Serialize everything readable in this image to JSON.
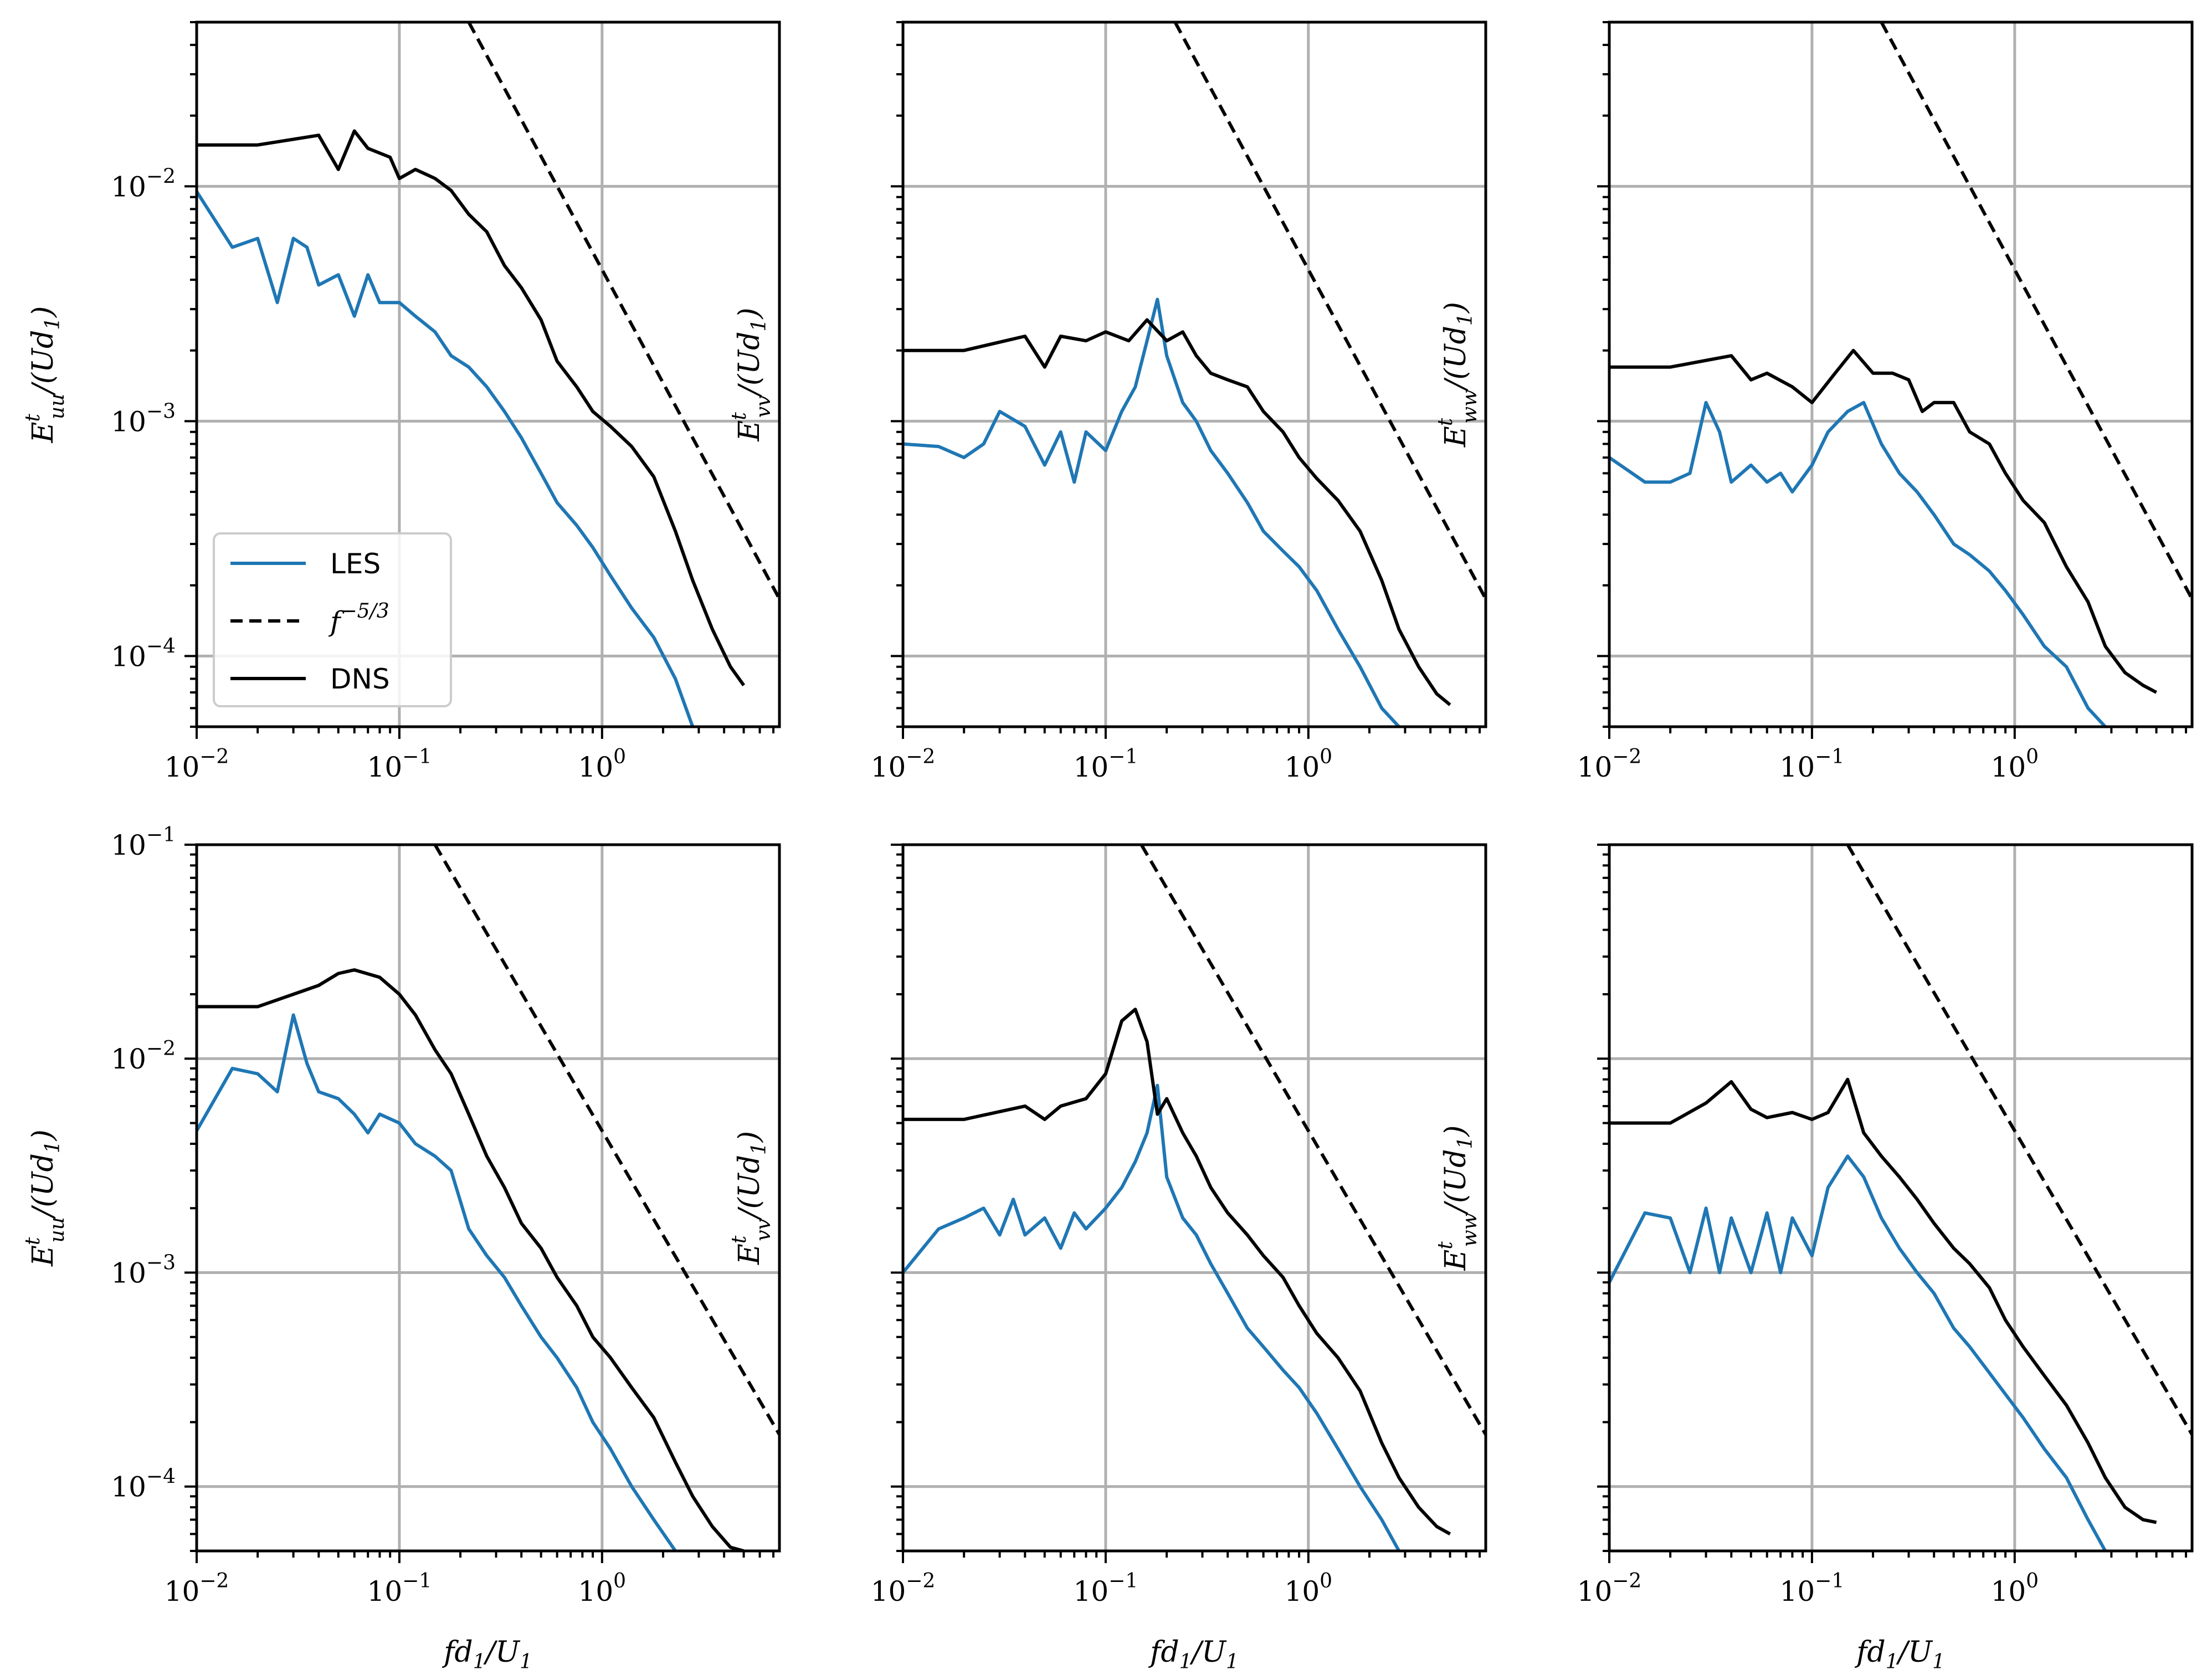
{
  "colors": {
    "les": "#1f77b4",
    "dns": "#000000",
    "ref": "#000000",
    "grid": "#b0b0b0"
  },
  "legend": {
    "les": "LES",
    "ref": "f^{-5/3}",
    "ref_base": "f",
    "ref_exp": "−5/3",
    "dns": "DNS"
  },
  "labels": {
    "xlabel": "fd1/U1",
    "xlabel_main": "fd",
    "xlabel_sub1": "1",
    "xlabel_mid": "/U",
    "xlabel_sub2": "1"
  },
  "chart_data": [
    {
      "type": "line",
      "row": 1,
      "col": 1,
      "xscale": "log",
      "yscale": "log",
      "xlim": [
        0.01,
        7.5
      ],
      "ylim": [
        5e-05,
        0.05
      ],
      "ylabel": "E^t_uu/(Ud1)",
      "ylabel_base": "E",
      "ylabel_sub": "uu",
      "ylabel_sup": "t",
      "ylabel_rest": "/(Ud",
      "ylabel_sub2": "1",
      "ylabel_end": ")",
      "xticks": [
        "10^-2",
        "10^-1",
        "10^0"
      ],
      "yticks": [
        "10^-2",
        "10^-3",
        "10^-4"
      ],
      "legend": true,
      "series": [
        {
          "name": "DNS",
          "x": [
            0.01,
            0.02,
            0.04,
            0.05,
            0.06,
            0.07,
            0.09,
            0.1,
            0.12,
            0.15,
            0.18,
            0.22,
            0.27,
            0.33,
            0.4,
            0.5,
            0.6,
            0.75,
            0.9,
            1.1,
            1.4,
            1.8,
            2.3,
            2.8,
            3.5,
            4.3,
            5.0
          ],
          "y": [
            0.015,
            0.015,
            0.0165,
            0.0118,
            0.0172,
            0.0145,
            0.0133,
            0.0108,
            0.0118,
            0.0108,
            0.0096,
            0.0076,
            0.0064,
            0.0046,
            0.0037,
            0.0027,
            0.0018,
            0.0014,
            0.0011,
            0.00095,
            0.00078,
            0.00058,
            0.00034,
            0.00021,
            0.00013,
            9e-05,
            7.5e-05
          ]
        },
        {
          "name": "LES",
          "x": [
            0.01,
            0.015,
            0.02,
            0.025,
            0.03,
            0.035,
            0.04,
            0.05,
            0.06,
            0.07,
            0.08,
            0.1,
            0.12,
            0.15,
            0.18,
            0.22,
            0.27,
            0.33,
            0.4,
            0.5,
            0.6,
            0.75,
            0.9,
            1.1,
            1.4,
            1.8,
            2.3,
            2.8
          ],
          "y": [
            0.0095,
            0.0055,
            0.006,
            0.0032,
            0.006,
            0.0055,
            0.0038,
            0.0042,
            0.0028,
            0.0042,
            0.0032,
            0.0032,
            0.0028,
            0.0024,
            0.0019,
            0.0017,
            0.0014,
            0.0011,
            0.00085,
            0.0006,
            0.00045,
            0.00036,
            0.00029,
            0.00022,
            0.00016,
            0.00012,
            8e-05,
            5e-05
          ]
        },
        {
          "name": "f^{-5/3}",
          "x": [
            0.22,
            7.5
          ],
          "y": [
            0.05,
            0.000175
          ]
        }
      ]
    },
    {
      "type": "line",
      "row": 1,
      "col": 2,
      "xscale": "log",
      "yscale": "log",
      "xlim": [
        0.01,
        7.5
      ],
      "ylim": [
        5e-05,
        0.05
      ],
      "ylabel": "E^t_vv/(Ud1)",
      "ylabel_base": "E",
      "ylabel_sub": "vv",
      "ylabel_sup": "t",
      "ylabel_rest": "/(Ud",
      "ylabel_sub2": "1",
      "ylabel_end": ")",
      "xticks": [
        "10^-2",
        "10^-1",
        "10^0"
      ],
      "yticks": [],
      "legend": false,
      "series": [
        {
          "name": "DNS",
          "x": [
            0.01,
            0.02,
            0.04,
            0.05,
            0.06,
            0.08,
            0.1,
            0.13,
            0.16,
            0.2,
            0.24,
            0.28,
            0.33,
            0.4,
            0.5,
            0.6,
            0.75,
            0.9,
            1.1,
            1.4,
            1.8,
            2.3,
            2.8,
            3.5,
            4.3,
            5.0
          ],
          "y": [
            0.002,
            0.002,
            0.0023,
            0.0017,
            0.0023,
            0.0022,
            0.0024,
            0.0022,
            0.0027,
            0.0022,
            0.0024,
            0.0019,
            0.0016,
            0.0015,
            0.0014,
            0.0011,
            0.0009,
            0.0007,
            0.00057,
            0.00046,
            0.00034,
            0.00021,
            0.00013,
            9e-05,
            6.9e-05,
            6.2e-05
          ]
        },
        {
          "name": "LES",
          "x": [
            0.01,
            0.015,
            0.02,
            0.025,
            0.03,
            0.04,
            0.05,
            0.06,
            0.07,
            0.08,
            0.1,
            0.12,
            0.14,
            0.16,
            0.18,
            0.2,
            0.24,
            0.28,
            0.33,
            0.4,
            0.5,
            0.6,
            0.75,
            0.9,
            1.1,
            1.4,
            1.8,
            2.3,
            2.8
          ],
          "y": [
            0.0008,
            0.00078,
            0.0007,
            0.0008,
            0.0011,
            0.00095,
            0.00065,
            0.0009,
            0.00055,
            0.0009,
            0.00075,
            0.0011,
            0.0014,
            0.0022,
            0.0033,
            0.0019,
            0.0012,
            0.001,
            0.00075,
            0.0006,
            0.00045,
            0.00034,
            0.00028,
            0.00024,
            0.00019,
            0.00013,
            9e-05,
            6e-05,
            5e-05
          ]
        },
        {
          "name": "f^{-5/3}",
          "x": [
            0.22,
            7.5
          ],
          "y": [
            0.05,
            0.000175
          ]
        }
      ]
    },
    {
      "type": "line",
      "row": 1,
      "col": 3,
      "xscale": "log",
      "yscale": "log",
      "xlim": [
        0.01,
        7.5
      ],
      "ylim": [
        5e-05,
        0.05
      ],
      "ylabel": "E^t_ww/(Ud1)",
      "ylabel_base": "E",
      "ylabel_sub": "ww",
      "ylabel_sup": "t",
      "ylabel_rest": "/(Ud",
      "ylabel_sub2": "1",
      "ylabel_end": ")",
      "xticks": [
        "10^-2",
        "10^-1",
        "10^0"
      ],
      "yticks": [],
      "legend": false,
      "series": [
        {
          "name": "DNS",
          "x": [
            0.01,
            0.02,
            0.04,
            0.05,
            0.06,
            0.08,
            0.1,
            0.13,
            0.16,
            0.2,
            0.25,
            0.3,
            0.35,
            0.4,
            0.5,
            0.6,
            0.75,
            0.9,
            1.1,
            1.4,
            1.8,
            2.3,
            2.8,
            3.5,
            4.3,
            5.0
          ],
          "y": [
            0.0017,
            0.0017,
            0.0019,
            0.0015,
            0.0016,
            0.0014,
            0.0012,
            0.0016,
            0.002,
            0.0016,
            0.0016,
            0.0015,
            0.0011,
            0.0012,
            0.0012,
            0.0009,
            0.0008,
            0.0006,
            0.00046,
            0.00037,
            0.00024,
            0.00017,
            0.00011,
            8.5e-05,
            7.5e-05,
            7e-05
          ]
        },
        {
          "name": "LES",
          "x": [
            0.01,
            0.015,
            0.02,
            0.025,
            0.03,
            0.035,
            0.04,
            0.05,
            0.06,
            0.07,
            0.08,
            0.1,
            0.12,
            0.15,
            0.18,
            0.22,
            0.27,
            0.33,
            0.4,
            0.5,
            0.6,
            0.75,
            0.9,
            1.1,
            1.4,
            1.8,
            2.3,
            2.8
          ],
          "y": [
            0.0007,
            0.00055,
            0.00055,
            0.0006,
            0.0012,
            0.0009,
            0.00055,
            0.00065,
            0.00055,
            0.0006,
            0.0005,
            0.00065,
            0.0009,
            0.0011,
            0.0012,
            0.0008,
            0.0006,
            0.0005,
            0.0004,
            0.0003,
            0.00027,
            0.00023,
            0.00019,
            0.00015,
            0.00011,
            9e-05,
            6e-05,
            5e-05
          ]
        },
        {
          "name": "f^{-5/3}",
          "x": [
            0.22,
            7.5
          ],
          "y": [
            0.05,
            0.000175
          ]
        }
      ]
    },
    {
      "type": "line",
      "row": 2,
      "col": 1,
      "xscale": "log",
      "yscale": "log",
      "xlim": [
        0.01,
        7.5
      ],
      "ylim": [
        5e-05,
        0.1
      ],
      "ylabel": "E^t_uu/(Ud1)",
      "ylabel_base": "E",
      "ylabel_sub": "uu",
      "ylabel_sup": "t",
      "ylabel_rest": "/(Ud",
      "ylabel_sub2": "1",
      "ylabel_end": ")",
      "xticks": [
        "10^-2",
        "10^-1",
        "10^0"
      ],
      "yticks": [
        "10^-1",
        "10^-2",
        "10^-3",
        "10^-4"
      ],
      "legend": false,
      "series": [
        {
          "name": "DNS",
          "x": [
            0.01,
            0.02,
            0.03,
            0.04,
            0.05,
            0.06,
            0.08,
            0.1,
            0.12,
            0.15,
            0.18,
            0.22,
            0.27,
            0.33,
            0.4,
            0.5,
            0.6,
            0.75,
            0.9,
            1.1,
            1.4,
            1.8,
            2.3,
            2.8,
            3.5,
            4.3,
            5.0
          ],
          "y": [
            0.0175,
            0.0175,
            0.02,
            0.022,
            0.025,
            0.026,
            0.024,
            0.02,
            0.016,
            0.011,
            0.0085,
            0.0055,
            0.0035,
            0.0025,
            0.0017,
            0.0013,
            0.00095,
            0.0007,
            0.0005,
            0.0004,
            0.00029,
            0.00021,
            0.00013,
            9e-05,
            6.5e-05,
            5.2e-05,
            5e-05
          ]
        },
        {
          "name": "LES",
          "x": [
            0.01,
            0.015,
            0.02,
            0.025,
            0.03,
            0.035,
            0.04,
            0.05,
            0.06,
            0.07,
            0.08,
            0.1,
            0.12,
            0.15,
            0.18,
            0.22,
            0.27,
            0.33,
            0.4,
            0.5,
            0.6,
            0.75,
            0.9,
            1.1,
            1.4,
            1.8,
            2.3
          ],
          "y": [
            0.0046,
            0.009,
            0.0085,
            0.007,
            0.016,
            0.0095,
            0.007,
            0.0065,
            0.0055,
            0.0045,
            0.0055,
            0.005,
            0.004,
            0.0035,
            0.003,
            0.0016,
            0.0012,
            0.00095,
            0.0007,
            0.0005,
            0.0004,
            0.00029,
            0.0002,
            0.00015,
            0.0001,
            7e-05,
            5e-05
          ]
        },
        {
          "name": "f^{-5/3}",
          "x": [
            0.15,
            7.5
          ],
          "y": [
            0.1,
            0.000175
          ]
        }
      ]
    },
    {
      "type": "line",
      "row": 2,
      "col": 2,
      "xscale": "log",
      "yscale": "log",
      "xlim": [
        0.01,
        7.5
      ],
      "ylim": [
        5e-05,
        0.1
      ],
      "ylabel": "E^t_vv/(Ud1)",
      "ylabel_base": "E",
      "ylabel_sub": "vv",
      "ylabel_sup": "t",
      "ylabel_rest": "/(Ud",
      "ylabel_sub2": "1",
      "ylabel_end": ")",
      "xticks": [
        "10^-2",
        "10^-1",
        "10^0"
      ],
      "yticks": [],
      "legend": false,
      "series": [
        {
          "name": "DNS",
          "x": [
            0.01,
            0.02,
            0.04,
            0.05,
            0.06,
            0.08,
            0.1,
            0.12,
            0.14,
            0.16,
            0.18,
            0.2,
            0.24,
            0.28,
            0.33,
            0.4,
            0.5,
            0.6,
            0.75,
            0.9,
            1.1,
            1.4,
            1.8,
            2.3,
            2.8,
            3.5,
            4.3,
            5.0
          ],
          "y": [
            0.0052,
            0.0052,
            0.006,
            0.0052,
            0.006,
            0.0065,
            0.0085,
            0.015,
            0.017,
            0.012,
            0.0055,
            0.0065,
            0.0045,
            0.0035,
            0.0025,
            0.0019,
            0.0015,
            0.0012,
            0.00095,
            0.0007,
            0.00052,
            0.0004,
            0.00028,
            0.00016,
            0.00011,
            8e-05,
            6.5e-05,
            6e-05
          ]
        },
        {
          "name": "LES",
          "x": [
            0.01,
            0.015,
            0.02,
            0.025,
            0.03,
            0.035,
            0.04,
            0.05,
            0.06,
            0.07,
            0.08,
            0.1,
            0.12,
            0.14,
            0.16,
            0.18,
            0.2,
            0.24,
            0.28,
            0.33,
            0.4,
            0.5,
            0.6,
            0.75,
            0.9,
            1.1,
            1.4,
            1.8,
            2.3,
            2.8
          ],
          "y": [
            0.001,
            0.0016,
            0.0018,
            0.002,
            0.0015,
            0.0022,
            0.0015,
            0.0018,
            0.0013,
            0.0019,
            0.0016,
            0.002,
            0.0025,
            0.0033,
            0.0045,
            0.0075,
            0.0028,
            0.0018,
            0.0015,
            0.0011,
            0.0008,
            0.00055,
            0.00045,
            0.00035,
            0.00029,
            0.00022,
            0.00015,
            0.0001,
            7e-05,
            5e-05
          ]
        },
        {
          "name": "f^{-5/3}",
          "x": [
            0.15,
            7.5
          ],
          "y": [
            0.1,
            0.000175
          ]
        }
      ]
    },
    {
      "type": "line",
      "row": 2,
      "col": 3,
      "xscale": "log",
      "yscale": "log",
      "xlim": [
        0.01,
        7.5
      ],
      "ylim": [
        5e-05,
        0.1
      ],
      "ylabel": "E^t_ww/(Ud1)",
      "ylabel_base": "E",
      "ylabel_sub": "ww",
      "ylabel_sup": "t",
      "ylabel_rest": "/(Ud",
      "ylabel_sub2": "1",
      "ylabel_end": ")",
      "xticks": [
        "10^-2",
        "10^-1",
        "10^0"
      ],
      "yticks": [],
      "legend": false,
      "series": [
        {
          "name": "DNS",
          "x": [
            0.01,
            0.02,
            0.03,
            0.04,
            0.05,
            0.06,
            0.08,
            0.1,
            0.12,
            0.15,
            0.18,
            0.22,
            0.27,
            0.33,
            0.4,
            0.5,
            0.6,
            0.75,
            0.9,
            1.1,
            1.4,
            1.8,
            2.3,
            2.8,
            3.5,
            4.3,
            5.0
          ],
          "y": [
            0.005,
            0.005,
            0.0062,
            0.0078,
            0.0058,
            0.0053,
            0.0056,
            0.0052,
            0.0056,
            0.008,
            0.0045,
            0.0035,
            0.0028,
            0.0022,
            0.0017,
            0.0013,
            0.0011,
            0.00085,
            0.0006,
            0.00045,
            0.00033,
            0.00024,
            0.00016,
            0.00011,
            8e-05,
            7e-05,
            6.8e-05
          ]
        },
        {
          "name": "LES",
          "x": [
            0.01,
            0.015,
            0.02,
            0.025,
            0.03,
            0.035,
            0.04,
            0.05,
            0.06,
            0.07,
            0.08,
            0.1,
            0.12,
            0.15,
            0.18,
            0.22,
            0.27,
            0.33,
            0.4,
            0.5,
            0.6,
            0.75,
            0.9,
            1.1,
            1.4,
            1.8,
            2.3,
            2.8
          ],
          "y": [
            0.0009,
            0.0019,
            0.0018,
            0.001,
            0.002,
            0.001,
            0.0018,
            0.001,
            0.0019,
            0.001,
            0.0018,
            0.0012,
            0.0025,
            0.0035,
            0.0028,
            0.0018,
            0.0013,
            0.001,
            0.0008,
            0.00055,
            0.00045,
            0.00034,
            0.00027,
            0.00021,
            0.00015,
            0.00011,
            7e-05,
            5e-05
          ]
        },
        {
          "name": "f^{-5/3}",
          "x": [
            0.15,
            7.5
          ],
          "y": [
            0.1,
            0.000175
          ]
        }
      ]
    }
  ]
}
